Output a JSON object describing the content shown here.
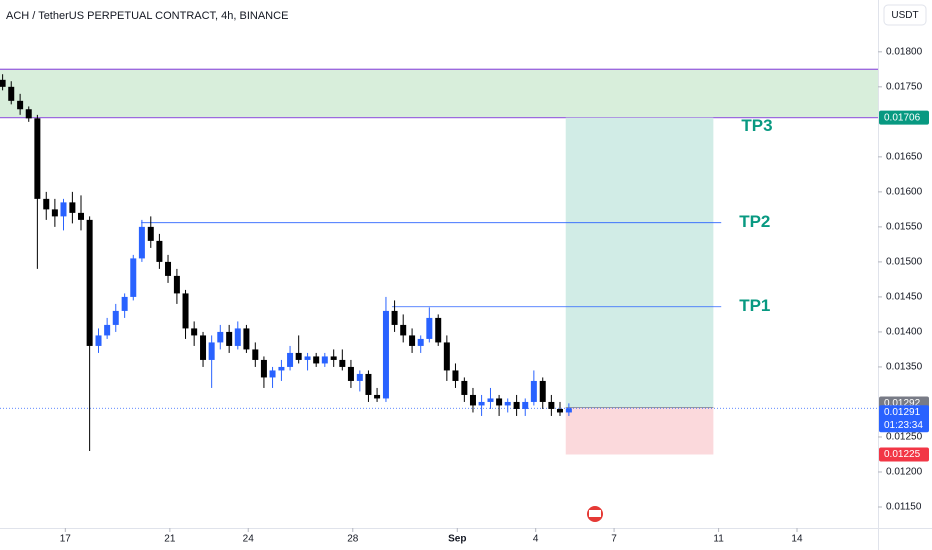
{
  "chart_data": {
    "type": "candlestick",
    "title": "ACH / TetherUS PERPETUAL CONTRACT, 4h, BINANCE",
    "currency": "USDT",
    "up_color": "#2962ff",
    "down_color": "#000000",
    "xlim": [
      14.5,
      48.1
    ],
    "ylim": [
      0.0112,
      0.01874
    ],
    "xticks": [
      17,
      21,
      24,
      28,
      {
        "value": 32,
        "label": "Sep"
      },
      {
        "value": 35,
        "label": "4"
      },
      {
        "value": 38,
        "label": "7"
      },
      {
        "value": 42,
        "label": "11"
      },
      {
        "value": 45,
        "label": "14"
      }
    ],
    "yticks": [
      {
        "value": 0.018,
        "label": "0.01800"
      },
      {
        "value": 0.0175,
        "label": "0.01750"
      },
      {
        "value": 0.0165,
        "label": "0.01650"
      },
      {
        "value": 0.016,
        "label": "0.01600"
      },
      {
        "value": 0.0155,
        "label": "0.01550"
      },
      {
        "value": 0.015,
        "label": "0.01500"
      },
      {
        "value": 0.0145,
        "label": "0.01450"
      },
      {
        "value": 0.014,
        "label": "0.01400"
      },
      {
        "value": 0.0135,
        "label": "0.01350"
      },
      {
        "value": 0.0125,
        "label": "0.01250"
      },
      {
        "value": 0.012,
        "label": "0.01200"
      },
      {
        "value": 0.0115,
        "label": "0.01150"
      }
    ],
    "x": [
      14.6,
      14.93,
      15.27,
      15.6,
      15.93,
      16.27,
      16.6,
      16.93,
      17.27,
      17.6,
      17.93,
      18.27,
      18.6,
      18.93,
      19.27,
      19.6,
      19.93,
      20.27,
      20.6,
      20.93,
      21.27,
      21.6,
      21.93,
      22.27,
      22.6,
      22.93,
      23.27,
      23.6,
      23.93,
      24.27,
      24.6,
      24.93,
      25.27,
      25.6,
      25.93,
      26.27,
      26.6,
      26.93,
      27.27,
      27.6,
      27.93,
      28.27,
      28.6,
      28.93,
      29.27,
      29.6,
      29.93,
      30.27,
      30.6,
      30.93,
      31.27,
      31.6,
      31.93,
      32.27,
      32.6,
      32.93,
      33.27,
      33.6,
      33.93,
      34.27,
      34.6,
      34.93,
      35.27,
      35.6,
      35.93,
      36.27
    ],
    "candles": [
      [
        0.0176,
        0.01768,
        0.01745,
        0.0175
      ],
      [
        0.0175,
        0.01758,
        0.01725,
        0.0173
      ],
      [
        0.0173,
        0.0174,
        0.0171,
        0.01718
      ],
      [
        0.01718,
        0.01722,
        0.017,
        0.01705
      ],
      [
        0.01705,
        0.0171,
        0.0149,
        0.0159
      ],
      [
        0.0159,
        0.016,
        0.0156,
        0.01575
      ],
      [
        0.01575,
        0.0159,
        0.0155,
        0.01565
      ],
      [
        0.01565,
        0.0159,
        0.01545,
        0.01585
      ],
      [
        0.01585,
        0.016,
        0.01555,
        0.0157
      ],
      [
        0.0157,
        0.01595,
        0.01545,
        0.0156
      ],
      [
        0.0156,
        0.01565,
        0.0123,
        0.0138
      ],
      [
        0.0138,
        0.01405,
        0.0137,
        0.01395
      ],
      [
        0.01395,
        0.0142,
        0.0139,
        0.0141
      ],
      [
        0.0141,
        0.0144,
        0.014,
        0.0143
      ],
      [
        0.0143,
        0.01455,
        0.0142,
        0.0145
      ],
      [
        0.0145,
        0.0151,
        0.01445,
        0.01505
      ],
      [
        0.01505,
        0.0156,
        0.015,
        0.0155
      ],
      [
        0.0155,
        0.01565,
        0.0152,
        0.0153
      ],
      [
        0.0153,
        0.0154,
        0.0149,
        0.015
      ],
      [
        0.015,
        0.0151,
        0.0147,
        0.0148
      ],
      [
        0.0148,
        0.0149,
        0.0144,
        0.01455
      ],
      [
        0.01455,
        0.0146,
        0.0139,
        0.01405
      ],
      [
        0.01405,
        0.01415,
        0.0138,
        0.01395
      ],
      [
        0.01395,
        0.014,
        0.0135,
        0.0136
      ],
      [
        0.0136,
        0.01395,
        0.0132,
        0.01385
      ],
      [
        0.01385,
        0.0141,
        0.01375,
        0.014
      ],
      [
        0.014,
        0.0141,
        0.0137,
        0.0138
      ],
      [
        0.0138,
        0.01415,
        0.01375,
        0.01405
      ],
      [
        0.01405,
        0.0141,
        0.0137,
        0.01375
      ],
      [
        0.01375,
        0.01385,
        0.0135,
        0.0136
      ],
      [
        0.0136,
        0.01365,
        0.0132,
        0.01335
      ],
      [
        0.01335,
        0.0135,
        0.0132,
        0.01345
      ],
      [
        0.01345,
        0.0136,
        0.0133,
        0.0135
      ],
      [
        0.0135,
        0.0138,
        0.01345,
        0.0137
      ],
      [
        0.0137,
        0.01395,
        0.01355,
        0.0136
      ],
      [
        0.0136,
        0.0137,
        0.01345,
        0.01365
      ],
      [
        0.01365,
        0.0137,
        0.0135,
        0.01355
      ],
      [
        0.01355,
        0.0137,
        0.0135,
        0.01365
      ],
      [
        0.01365,
        0.01375,
        0.0135,
        0.0136
      ],
      [
        0.0136,
        0.01375,
        0.01345,
        0.0135
      ],
      [
        0.0135,
        0.0136,
        0.0132,
        0.0133
      ],
      [
        0.0133,
        0.01345,
        0.01315,
        0.0134
      ],
      [
        0.0134,
        0.01345,
        0.013,
        0.0131
      ],
      [
        0.0131,
        0.0132,
        0.013,
        0.01305
      ],
      [
        0.01305,
        0.0145,
        0.013,
        0.0143
      ],
      [
        0.0143,
        0.01445,
        0.014,
        0.0141
      ],
      [
        0.0141,
        0.01425,
        0.01385,
        0.01395
      ],
      [
        0.01395,
        0.01405,
        0.0137,
        0.0138
      ],
      [
        0.0138,
        0.01395,
        0.0137,
        0.0139
      ],
      [
        0.0139,
        0.01435,
        0.01385,
        0.0142
      ],
      [
        0.0142,
        0.01425,
        0.0138,
        0.01385
      ],
      [
        0.01385,
        0.01395,
        0.0133,
        0.01345
      ],
      [
        0.01345,
        0.01355,
        0.0132,
        0.0133
      ],
      [
        0.0133,
        0.01335,
        0.013,
        0.0131
      ],
      [
        0.0131,
        0.0132,
        0.01285,
        0.01295
      ],
      [
        0.01295,
        0.0131,
        0.0128,
        0.013
      ],
      [
        0.013,
        0.0132,
        0.0129,
        0.01305
      ],
      [
        0.01305,
        0.0131,
        0.0128,
        0.01295
      ],
      [
        0.01295,
        0.01305,
        0.01285,
        0.013
      ],
      [
        0.013,
        0.0131,
        0.0128,
        0.0129
      ],
      [
        0.0129,
        0.01305,
        0.0128,
        0.013
      ],
      [
        0.013,
        0.01345,
        0.01295,
        0.0133
      ],
      [
        0.0133,
        0.01335,
        0.0129,
        0.013
      ],
      [
        0.013,
        0.0131,
        0.0128,
        0.0129
      ],
      [
        0.0129,
        0.013,
        0.0128,
        0.01285
      ],
      [
        0.01285,
        0.01298,
        0.0128,
        0.01291
      ]
    ],
    "zone": {
      "low": 0.01706,
      "high": 0.01775,
      "fill": "#d8eedb",
      "line_color": "#9c6ade"
    },
    "levels": [
      {
        "label": "TP2",
        "value": 0.01556,
        "from": 19.9,
        "to": 42.1
      },
      {
        "label": "TP1",
        "value": 0.01436,
        "from": 29.5,
        "to": 42.1
      }
    ],
    "target_label": "TP3",
    "position": {
      "start": 36.15,
      "end": 41.8,
      "entry": 0.01292,
      "target": 0.01706,
      "stop": 0.01225
    },
    "price_labels": [
      {
        "value": 0.01706,
        "label": "0.01706",
        "color": "#089981"
      },
      {
        "value": 0.01292,
        "label": "0.01292",
        "color": "#787b86"
      },
      {
        "value": 0.01291,
        "label": "0.01291",
        "color": "#2962ff",
        "countdown": "01:23:34"
      },
      {
        "value": 0.01225,
        "label": "0.01225",
        "color": "#f23645"
      }
    ]
  }
}
